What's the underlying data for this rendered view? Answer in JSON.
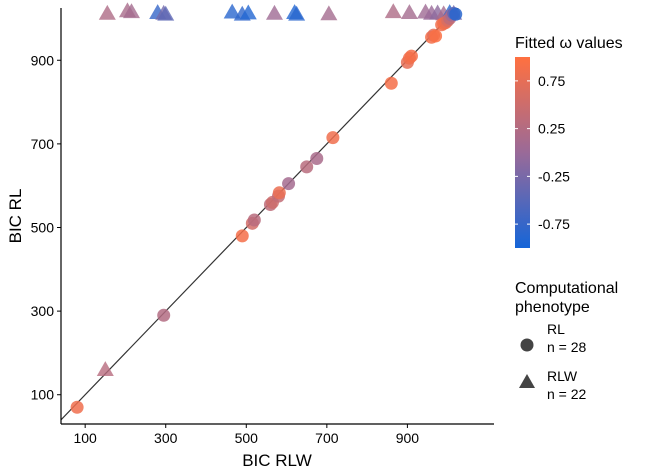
{
  "chart_data": {
    "type": "scatter",
    "xlabel": "BIC RLW",
    "ylabel": "BIC RL",
    "xlim": [
      40,
      1115
    ],
    "ylim": [
      30,
      1025
    ],
    "xticks": [
      100,
      300,
      500,
      700,
      900
    ],
    "yticks": [
      100,
      300,
      500,
      700,
      900
    ],
    "grid": false,
    "identity_line": true,
    "colorbar": {
      "title": "Fitted ω values",
      "range": [
        -1,
        1
      ],
      "low_color": "#1565D8",
      "mid_color": "#9A6A98",
      "high_color": "#FF7040",
      "ticks": [
        "0.75",
        "0.25",
        "-0.25",
        "-0.75"
      ],
      "tick_values": [
        0.75,
        0.25,
        -0.25,
        -0.75
      ]
    },
    "shape_legend": {
      "title_line1": "Computational",
      "title_line2": "phenotype",
      "items": [
        {
          "shape": "circle",
          "label": "RL",
          "count": "n = 28"
        },
        {
          "shape": "triangle",
          "label": "RLW",
          "count": "n = 22"
        }
      ]
    },
    "points_rl": [
      {
        "x": 80,
        "y": 70,
        "w": 0.85
      },
      {
        "x": 295,
        "y": 290,
        "w": 0.25
      },
      {
        "x": 490,
        "y": 480,
        "w": 0.9
      },
      {
        "x": 515,
        "y": 510,
        "w": 0.55
      },
      {
        "x": 520,
        "y": 518,
        "w": 0.3
      },
      {
        "x": 560,
        "y": 555,
        "w": 0.35
      },
      {
        "x": 565,
        "y": 560,
        "w": 0.5
      },
      {
        "x": 580,
        "y": 575,
        "w": 0.4
      },
      {
        "x": 582,
        "y": 583,
        "w": 0.8
      },
      {
        "x": 605,
        "y": 605,
        "w": 0.1
      },
      {
        "x": 650,
        "y": 645,
        "w": 0.3
      },
      {
        "x": 675,
        "y": 665,
        "w": 0.15
      },
      {
        "x": 715,
        "y": 715,
        "w": 0.85
      },
      {
        "x": 860,
        "y": 845,
        "w": 0.9
      },
      {
        "x": 900,
        "y": 895,
        "w": 0.75
      },
      {
        "x": 905,
        "y": 905,
        "w": 0.85
      },
      {
        "x": 910,
        "y": 910,
        "w": 0.9
      },
      {
        "x": 960,
        "y": 955,
        "w": 0.9
      },
      {
        "x": 965,
        "y": 960,
        "w": 0.7
      },
      {
        "x": 970,
        "y": 958,
        "w": 0.95
      },
      {
        "x": 985,
        "y": 985,
        "w": 0.85
      },
      {
        "x": 990,
        "y": 988,
        "w": 0.9
      },
      {
        "x": 995,
        "y": 990,
        "w": 0.8
      },
      {
        "x": 1000,
        "y": 995,
        "w": 0.6
      },
      {
        "x": 1005,
        "y": 1000,
        "w": 0.35
      },
      {
        "x": 1010,
        "y": 1008,
        "w": 0.1
      },
      {
        "x": 1015,
        "y": 1012,
        "w": -0.5
      },
      {
        "x": 1020,
        "y": 1010,
        "w": -0.85
      }
    ],
    "points_rlw": [
      {
        "x": 150,
        "y": 160,
        "w": 0.3
      },
      {
        "x": 155,
        "y": 1012,
        "w": 0.2
      },
      {
        "x": 205,
        "y": 1018,
        "w": 0.15
      },
      {
        "x": 215,
        "y": 1016,
        "w": 0.1
      },
      {
        "x": 280,
        "y": 1014,
        "w": -0.75
      },
      {
        "x": 295,
        "y": 1012,
        "w": -0.3
      },
      {
        "x": 300,
        "y": 1010,
        "w": -0.45
      },
      {
        "x": 465,
        "y": 1015,
        "w": -0.85
      },
      {
        "x": 490,
        "y": 1010,
        "w": -0.8
      },
      {
        "x": 505,
        "y": 1013,
        "w": -0.9
      },
      {
        "x": 570,
        "y": 1012,
        "w": 0.05
      },
      {
        "x": 620,
        "y": 1014,
        "w": -0.9
      },
      {
        "x": 625,
        "y": 1010,
        "w": -0.85
      },
      {
        "x": 705,
        "y": 1011,
        "w": 0.1
      },
      {
        "x": 865,
        "y": 1016,
        "w": 0.2
      },
      {
        "x": 905,
        "y": 1014,
        "w": 0.1
      },
      {
        "x": 945,
        "y": 1015,
        "w": 0.05
      },
      {
        "x": 960,
        "y": 1012,
        "w": 0.0
      },
      {
        "x": 975,
        "y": 1013,
        "w": -0.1
      },
      {
        "x": 990,
        "y": 1011,
        "w": 0.1
      },
      {
        "x": 1005,
        "y": 1014,
        "w": -0.85
      },
      {
        "x": 1015,
        "y": 1012,
        "w": -0.3
      }
    ]
  }
}
